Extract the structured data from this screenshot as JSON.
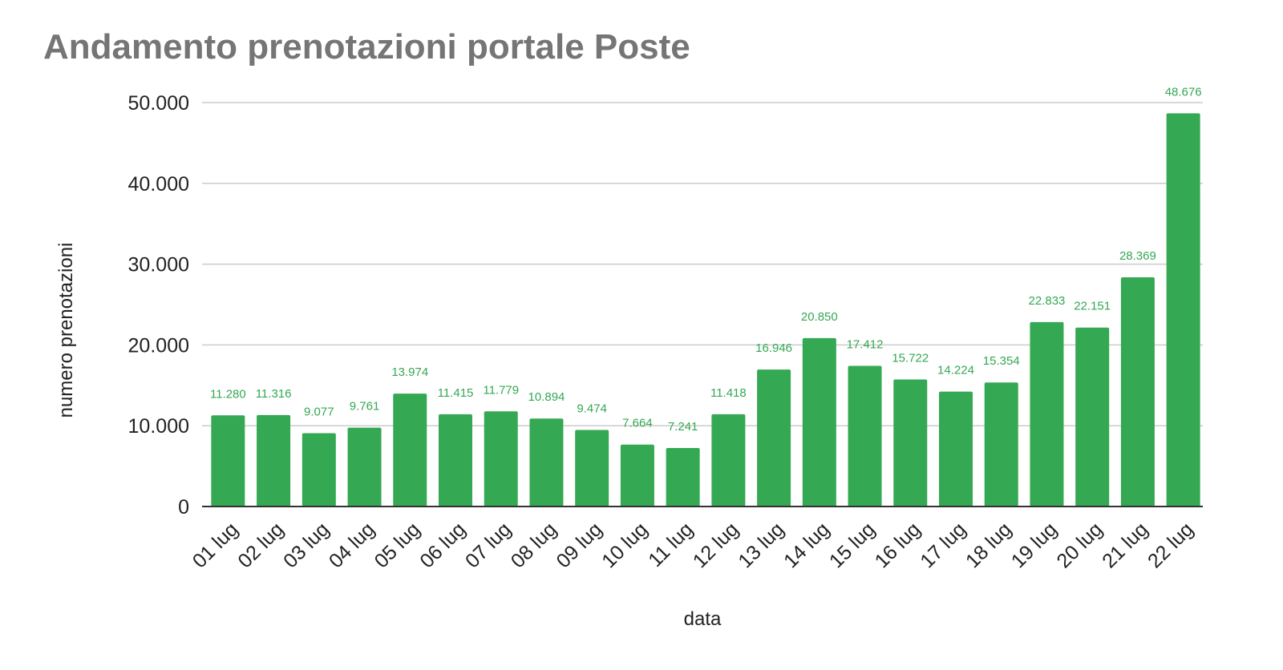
{
  "chart_data": {
    "type": "bar",
    "title": "Andamento prenotazioni portale Poste",
    "xlabel": "data",
    "ylabel": "numero prenotazioni",
    "ylim": [
      0,
      50000
    ],
    "yticks": [
      0,
      10000,
      20000,
      30000,
      40000,
      50000
    ],
    "ytick_labels": [
      "0",
      "10.000",
      "20.000",
      "30.000",
      "40.000",
      "50.000"
    ],
    "grid": true,
    "bar_color": "#34a853",
    "categories": [
      "01 lug",
      "02 lug",
      "03 lug",
      "04 lug",
      "05 lug",
      "06 lug",
      "07 lug",
      "08 lug",
      "09 lug",
      "10 lug",
      "11 lug",
      "12 lug",
      "13 lug",
      "14 lug",
      "15 lug",
      "16 lug",
      "17 lug",
      "18 lug",
      "19 lug",
      "20 lug",
      "21 lug",
      "22 lug"
    ],
    "values": [
      11280,
      11316,
      9077,
      9761,
      13974,
      11415,
      11779,
      10894,
      9474,
      7664,
      7241,
      11418,
      16946,
      20850,
      17412,
      15722,
      14224,
      15354,
      22833,
      22151,
      28369,
      48676
    ],
    "value_labels": [
      "11.280",
      "11.316",
      "9.077",
      "9.761",
      "13.974",
      "11.415",
      "11.779",
      "10.894",
      "9.474",
      "7.664",
      "7.241",
      "11.418",
      "16.946",
      "20.850",
      "17.412",
      "15.722",
      "14.224",
      "15.354",
      "22.833",
      "22.151",
      "28.369",
      "48.676"
    ]
  }
}
